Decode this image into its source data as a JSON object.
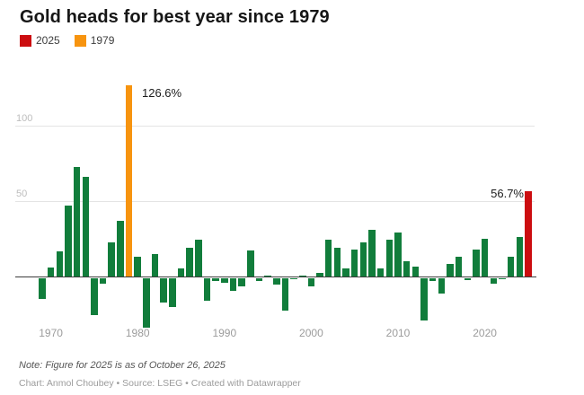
{
  "title": "Gold heads for best year since 1979",
  "legend": [
    {
      "label": "2025",
      "color": "#cc0d10"
    },
    {
      "label": "1979",
      "color": "#f7940f"
    }
  ],
  "annotations": {
    "peak_1979": "126.6%",
    "peak_2025": "56.7%"
  },
  "note": "Note: Figure for 2025 is as of October 26, 2025",
  "credit": "Chart: Anmol Choubey • Source: LSEG • Created with Datawrapper",
  "chart_data": {
    "type": "bar",
    "title": "Gold heads for best year since 1979",
    "value_unit": "%",
    "x": [
      1969,
      1970,
      1971,
      1972,
      1973,
      1974,
      1975,
      1976,
      1977,
      1978,
      1979,
      1980,
      1981,
      1982,
      1983,
      1984,
      1985,
      1986,
      1987,
      1988,
      1989,
      1990,
      1991,
      1992,
      1993,
      1994,
      1995,
      1996,
      1997,
      1998,
      1999,
      2000,
      2001,
      2002,
      2003,
      2004,
      2005,
      2006,
      2007,
      2008,
      2009,
      2010,
      2011,
      2012,
      2013,
      2014,
      2015,
      2016,
      2017,
      2018,
      2019,
      2020,
      2021,
      2022,
      2023,
      2024,
      2025
    ],
    "values": [
      -14,
      6,
      16.6,
      47,
      72.3,
      66,
      -24.8,
      -4.1,
      22.6,
      37,
      126.6,
      13.3,
      -32.6,
      14.9,
      -16.3,
      -19.2,
      5.8,
      19.5,
      24.5,
      -15.3,
      -2.2,
      -3.1,
      -8.6,
      -5.7,
      17.3,
      -2.2,
      1.0,
      -4.6,
      -21.4,
      -0.8,
      0.9,
      -5.4,
      2.5,
      24.8,
      19.5,
      5.5,
      18.0,
      23.0,
      31.1,
      5.8,
      24.4,
      29.5,
      10.2,
      7.0,
      -28.0,
      -2.0,
      -10.4,
      8.6,
      13.1,
      -1.6,
      18.3,
      25.1,
      -3.6,
      -0.3,
      13.1,
      26.5,
      56.7
    ],
    "bar_colors": {
      "default": "#117d3b",
      "1979": "#f7940f",
      "2025": "#cc0d10"
    },
    "highlight_labels": [
      {
        "year": 1979,
        "text": "126.6%"
      },
      {
        "year": 2025,
        "text": "56.7%"
      }
    ],
    "x_ticks": [
      1970,
      1980,
      1990,
      2000,
      2010,
      2020
    ],
    "y_ticks": [
      50,
      100
    ],
    "ylim": [
      -35,
      135
    ],
    "grid": true,
    "legend_position": "top-left"
  }
}
